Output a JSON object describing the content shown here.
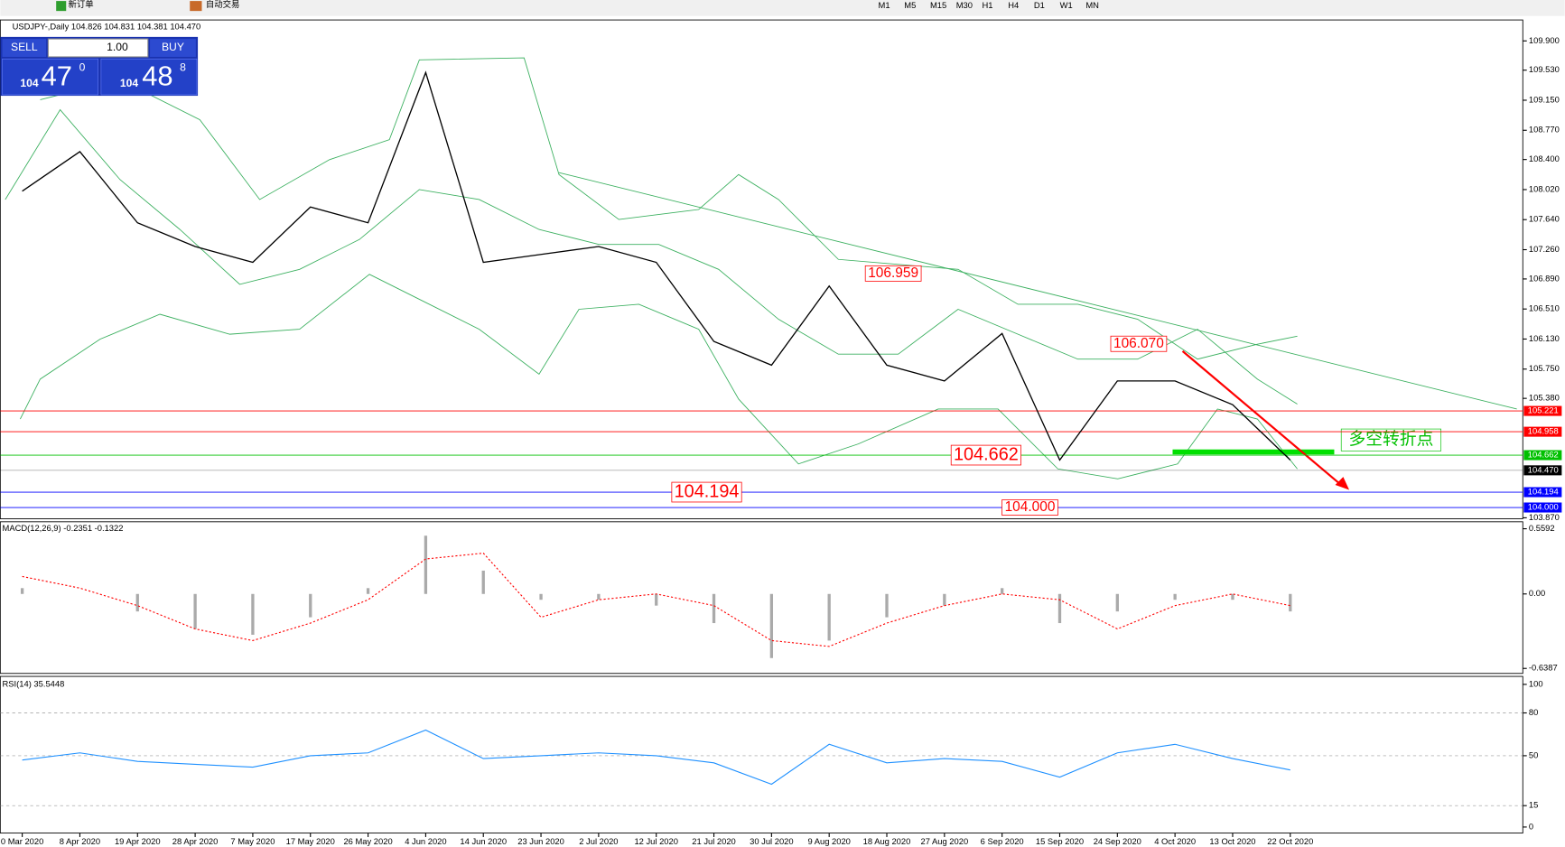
{
  "toolbar": {
    "buttons": [
      "新订单",
      "自动交易"
    ],
    "timeframes": [
      "M1",
      "M5",
      "M15",
      "M30",
      "H1",
      "H4",
      "D1",
      "W1",
      "MN"
    ]
  },
  "trade_panel": {
    "sell": "SELL",
    "buy": "BUY",
    "volume": "1.00",
    "sell_price": {
      "big": "104",
      "main": "47",
      "sup": "0"
    },
    "buy_price": {
      "big": "104",
      "main": "48",
      "sup": "8"
    }
  },
  "price_chart": {
    "header": "USDJPY-,Daily  104.826 104.831 104.381 104.470",
    "ylim": [
      103.87,
      109.9
    ],
    "yticks": [
      {
        "value": 109.9,
        "label": "109.900"
      },
      {
        "value": 109.53,
        "label": "109.530"
      },
      {
        "value": 109.15,
        "label": "109.150"
      },
      {
        "value": 108.77,
        "label": "108.770"
      },
      {
        "value": 108.4,
        "label": "108.400"
      },
      {
        "value": 108.02,
        "label": "108.020"
      },
      {
        "value": 107.64,
        "label": "107.640"
      },
      {
        "value": 107.26,
        "label": "107.260"
      },
      {
        "value": 106.89,
        "label": "106.890"
      },
      {
        "value": 106.51,
        "label": "106.510"
      },
      {
        "value": 106.13,
        "label": "106.130"
      },
      {
        "value": 105.75,
        "label": "105.750"
      },
      {
        "value": 105.38,
        "label": "105.380"
      },
      {
        "value": 103.87,
        "label": "103.870"
      }
    ],
    "levels": [
      {
        "value": 105.221,
        "label": "105.221",
        "color": "#ff0000"
      },
      {
        "value": 104.958,
        "label": "104.958",
        "color": "#ff0000"
      },
      {
        "value": 104.662,
        "label": "104.662",
        "color": "#00c000"
      },
      {
        "value": 104.47,
        "label": "104.470",
        "color": "#000000"
      },
      {
        "value": 104.194,
        "label": "104.194",
        "color": "#0000ff"
      },
      {
        "value": 104,
        "label": "104.000",
        "color": "#0000ff"
      }
    ],
    "annotations": [
      {
        "value": 106.959,
        "label": "106.959"
      },
      {
        "value": 106.07,
        "label": "106.070"
      },
      {
        "value": 104.662,
        "label": "104.662"
      },
      {
        "value": 104.194,
        "label": "104.194"
      },
      {
        "value": 104,
        "label": "104.000"
      }
    ],
    "note": "多空转折点",
    "dates": [
      "0 Mar 2020",
      "8 Apr 2020",
      "19 Apr 2020",
      "28 Apr 2020",
      "7 May 2020",
      "17 May 2020",
      "26 May 2020",
      "4 Jun 2020",
      "14 Jun 2020",
      "23 Jun 2020",
      "2 Jul 2020",
      "12 Jul 2020",
      "21 Jul 2020",
      "30 Jul 2020",
      "9 Aug 2020",
      "18 Aug 2020",
      "27 Aug 2020",
      "6 Sep 2020",
      "15 Sep 2020",
      "24 Sep 2020",
      "4 Oct 2020",
      "13 Oct 2020",
      "22 Oct 2020"
    ],
    "closes": [
      108.0,
      108.5,
      107.6,
      107.3,
      107.1,
      107.8,
      107.6,
      109.5,
      107.1,
      107.2,
      107.3,
      107.1,
      106.1,
      105.8,
      106.8,
      105.8,
      105.6,
      106.2,
      104.6,
      105.6,
      105.6,
      105.3,
      104.6
    ]
  },
  "macd": {
    "label": "MACD(12,26,9) -0.2351 -0.1322",
    "ylim": [
      -0.6387,
      0.5592
    ],
    "yticks": [
      {
        "value": 0.5592,
        "label": "0.5592"
      },
      {
        "value": 0,
        "label": "0.00"
      },
      {
        "value": -0.6387,
        "label": "-0.6387"
      }
    ],
    "histogram": [
      0.05,
      0.0,
      -0.15,
      -0.3,
      -0.35,
      -0.2,
      0.05,
      0.5,
      0.2,
      -0.05,
      -0.05,
      -0.1,
      -0.25,
      -0.55,
      -0.4,
      -0.2,
      -0.1,
      0.05,
      -0.25,
      -0.15,
      -0.05,
      -0.05,
      -0.15
    ],
    "signal": [
      0.15,
      0.05,
      -0.1,
      -0.3,
      -0.4,
      -0.25,
      -0.05,
      0.3,
      0.35,
      -0.2,
      -0.05,
      0.0,
      -0.1,
      -0.4,
      -0.45,
      -0.25,
      -0.1,
      0.0,
      -0.05,
      -0.3,
      -0.1,
      0.0,
      -0.1
    ]
  },
  "rsi": {
    "label": "RSI(14) 35.5448",
    "ylim": [
      0,
      100
    ],
    "yticks": [
      0,
      15,
      50,
      80,
      100
    ],
    "values": [
      47,
      52,
      46,
      44,
      42,
      50,
      52,
      68,
      48,
      50,
      52,
      50,
      45,
      30,
      58,
      45,
      48,
      46,
      35,
      52,
      58,
      48,
      40
    ]
  }
}
